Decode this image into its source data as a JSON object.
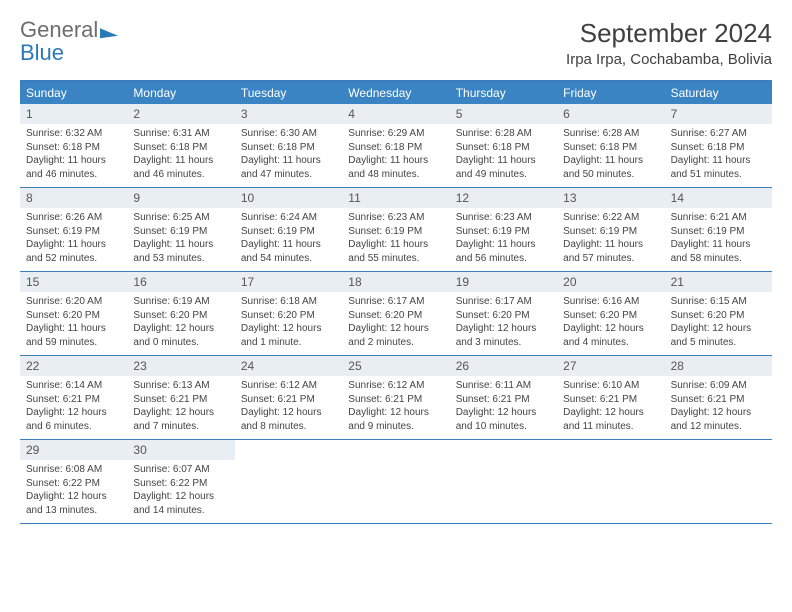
{
  "brand": {
    "part1": "General",
    "part2": "Blue"
  },
  "title": "September 2024",
  "subtitle": "Irpa Irpa, Cochabamba, Bolivia",
  "colors": {
    "header_bg": "#3b84c4",
    "border": "#3b7dbf",
    "daynum_bg": "#e9eef2",
    "logo_blue": "#2a7ab8",
    "logo_gray": "#6e6e6e",
    "text": "#404040"
  },
  "weekdays": [
    "Sunday",
    "Monday",
    "Tuesday",
    "Wednesday",
    "Thursday",
    "Friday",
    "Saturday"
  ],
  "weeks": [
    [
      {
        "n": "1",
        "sr": "6:32 AM",
        "ss": "6:18 PM",
        "dl": "11 hours and 46 minutes."
      },
      {
        "n": "2",
        "sr": "6:31 AM",
        "ss": "6:18 PM",
        "dl": "11 hours and 46 minutes."
      },
      {
        "n": "3",
        "sr": "6:30 AM",
        "ss": "6:18 PM",
        "dl": "11 hours and 47 minutes."
      },
      {
        "n": "4",
        "sr": "6:29 AM",
        "ss": "6:18 PM",
        "dl": "11 hours and 48 minutes."
      },
      {
        "n": "5",
        "sr": "6:28 AM",
        "ss": "6:18 PM",
        "dl": "11 hours and 49 minutes."
      },
      {
        "n": "6",
        "sr": "6:28 AM",
        "ss": "6:18 PM",
        "dl": "11 hours and 50 minutes."
      },
      {
        "n": "7",
        "sr": "6:27 AM",
        "ss": "6:18 PM",
        "dl": "11 hours and 51 minutes."
      }
    ],
    [
      {
        "n": "8",
        "sr": "6:26 AM",
        "ss": "6:19 PM",
        "dl": "11 hours and 52 minutes."
      },
      {
        "n": "9",
        "sr": "6:25 AM",
        "ss": "6:19 PM",
        "dl": "11 hours and 53 minutes."
      },
      {
        "n": "10",
        "sr": "6:24 AM",
        "ss": "6:19 PM",
        "dl": "11 hours and 54 minutes."
      },
      {
        "n": "11",
        "sr": "6:23 AM",
        "ss": "6:19 PM",
        "dl": "11 hours and 55 minutes."
      },
      {
        "n": "12",
        "sr": "6:23 AM",
        "ss": "6:19 PM",
        "dl": "11 hours and 56 minutes."
      },
      {
        "n": "13",
        "sr": "6:22 AM",
        "ss": "6:19 PM",
        "dl": "11 hours and 57 minutes."
      },
      {
        "n": "14",
        "sr": "6:21 AM",
        "ss": "6:19 PM",
        "dl": "11 hours and 58 minutes."
      }
    ],
    [
      {
        "n": "15",
        "sr": "6:20 AM",
        "ss": "6:20 PM",
        "dl": "11 hours and 59 minutes."
      },
      {
        "n": "16",
        "sr": "6:19 AM",
        "ss": "6:20 PM",
        "dl": "12 hours and 0 minutes."
      },
      {
        "n": "17",
        "sr": "6:18 AM",
        "ss": "6:20 PM",
        "dl": "12 hours and 1 minute."
      },
      {
        "n": "18",
        "sr": "6:17 AM",
        "ss": "6:20 PM",
        "dl": "12 hours and 2 minutes."
      },
      {
        "n": "19",
        "sr": "6:17 AM",
        "ss": "6:20 PM",
        "dl": "12 hours and 3 minutes."
      },
      {
        "n": "20",
        "sr": "6:16 AM",
        "ss": "6:20 PM",
        "dl": "12 hours and 4 minutes."
      },
      {
        "n": "21",
        "sr": "6:15 AM",
        "ss": "6:20 PM",
        "dl": "12 hours and 5 minutes."
      }
    ],
    [
      {
        "n": "22",
        "sr": "6:14 AM",
        "ss": "6:21 PM",
        "dl": "12 hours and 6 minutes."
      },
      {
        "n": "23",
        "sr": "6:13 AM",
        "ss": "6:21 PM",
        "dl": "12 hours and 7 minutes."
      },
      {
        "n": "24",
        "sr": "6:12 AM",
        "ss": "6:21 PM",
        "dl": "12 hours and 8 minutes."
      },
      {
        "n": "25",
        "sr": "6:12 AM",
        "ss": "6:21 PM",
        "dl": "12 hours and 9 minutes."
      },
      {
        "n": "26",
        "sr": "6:11 AM",
        "ss": "6:21 PM",
        "dl": "12 hours and 10 minutes."
      },
      {
        "n": "27",
        "sr": "6:10 AM",
        "ss": "6:21 PM",
        "dl": "12 hours and 11 minutes."
      },
      {
        "n": "28",
        "sr": "6:09 AM",
        "ss": "6:21 PM",
        "dl": "12 hours and 12 minutes."
      }
    ],
    [
      {
        "n": "29",
        "sr": "6:08 AM",
        "ss": "6:22 PM",
        "dl": "12 hours and 13 minutes."
      },
      {
        "n": "30",
        "sr": "6:07 AM",
        "ss": "6:22 PM",
        "dl": "12 hours and 14 minutes."
      },
      {
        "empty": true
      },
      {
        "empty": true
      },
      {
        "empty": true
      },
      {
        "empty": true
      },
      {
        "empty": true
      }
    ]
  ],
  "labels": {
    "sunrise": "Sunrise:",
    "sunset": "Sunset:",
    "daylight": "Daylight:"
  }
}
